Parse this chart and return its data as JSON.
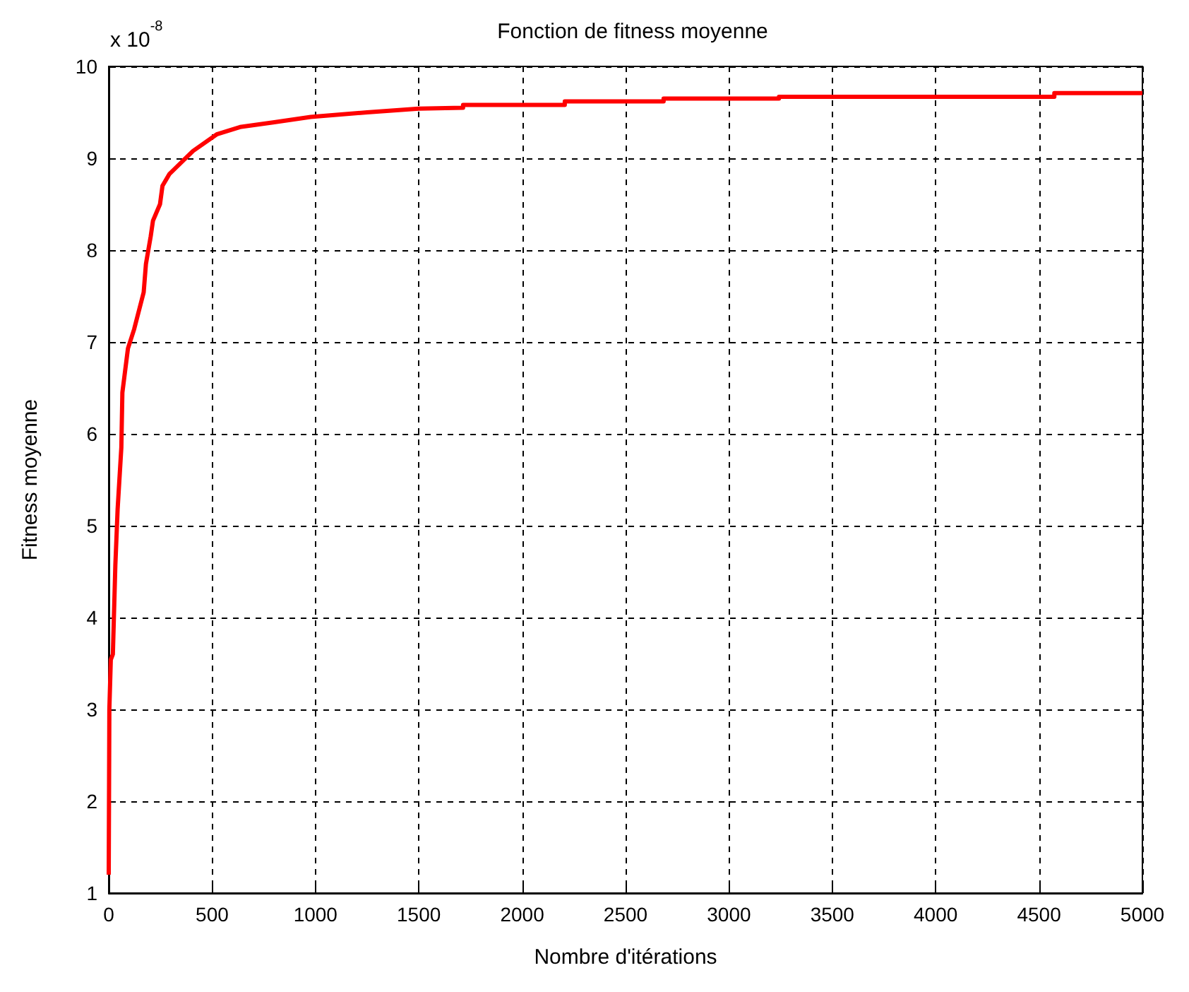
{
  "chart_data": {
    "type": "line",
    "title": "Fonction de fitness moyenne",
    "xlabel": "Nombre d'itérations",
    "ylabel": "Fitness moyenne",
    "annotations": [
      "x 10$^{-8}$"
    ],
    "xlim": [
      0,
      5000
    ],
    "xticks": [
      0,
      500,
      1000,
      1500,
      2000,
      2500,
      3000,
      3500,
      4000,
      4500,
      5000
    ],
    "ylim": [
      1,
      10
    ],
    "yticks": [
      1,
      2,
      3,
      4,
      5,
      6,
      7,
      8,
      9,
      10
    ],
    "grid": true,
    "marker": "none",
    "line_style": "solid",
    "series": [
      {
        "color": "#ff0000",
        "x": [
          0,
          3,
          10,
          20,
          32,
          43,
          61,
          66,
          93,
          123,
          146,
          169,
          180,
          203,
          214,
          248,
          260,
          294,
          408,
          522,
          635,
          795,
          977,
          1250,
          1500,
          1714,
          1714,
          2206,
          2206,
          2684,
          2684,
          3242,
          3242,
          4574,
          4574,
          5000
        ],
        "values": [
          1.2,
          3.0,
          3.54,
          3.6,
          4.57,
          5.18,
          5.85,
          6.45,
          6.93,
          7.14,
          7.34,
          7.54,
          7.85,
          8.15,
          8.32,
          8.5,
          8.7,
          8.83,
          9.08,
          9.26,
          9.34,
          9.39,
          9.45,
          9.5,
          9.54,
          9.55,
          9.58,
          9.58,
          9.62,
          9.62,
          9.65,
          9.65,
          9.67,
          9.67,
          9.71,
          9.71
        ]
      }
    ]
  }
}
